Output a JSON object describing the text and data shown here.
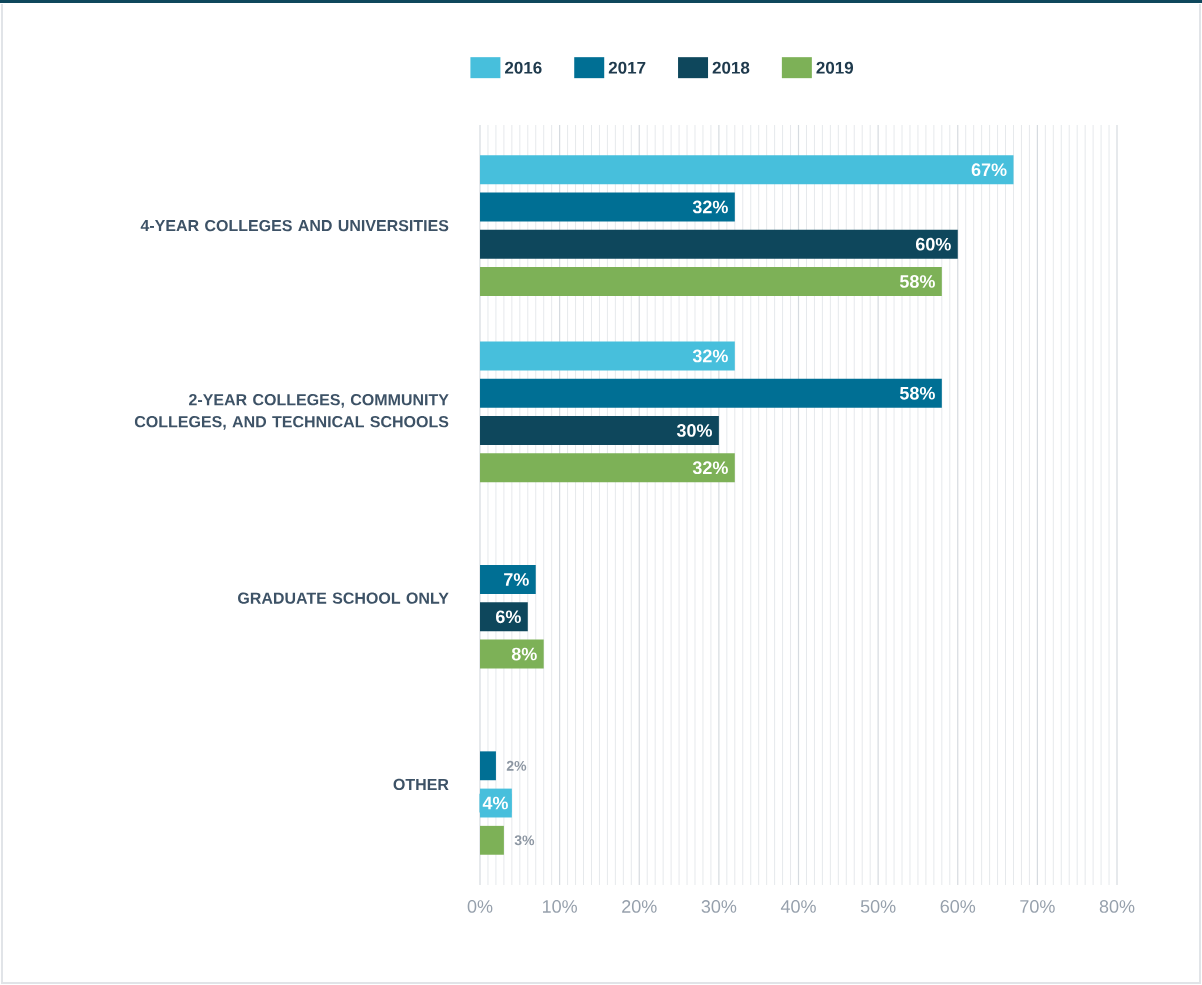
{
  "chart_data": {
    "type": "bar",
    "orientation": "horizontal",
    "categories": [
      "4-YEAR COLLEGES AND UNIVERSITIES",
      "2-YEAR COLLEGES, COMMUNITY COLLEGES, AND TECHNICAL SCHOOLS",
      "GRADUATE SCHOOL ONLY",
      "OTHER"
    ],
    "series": [
      {
        "name": "2016",
        "color": "#47bfdc",
        "values": [
          67,
          32,
          null,
          null
        ],
        "value_labels": [
          "67%",
          "32%",
          null,
          null
        ]
      },
      {
        "name": "2017",
        "color": "#006f94",
        "values": [
          32,
          58,
          7,
          2
        ],
        "value_labels": [
          "32%",
          "58%",
          "7%",
          "2%"
        ]
      },
      {
        "name": "2018",
        "color": "#0e475c",
        "colors": [
          "#0e475c",
          "#0e475c",
          "#0e475c",
          "#47bfdc"
        ],
        "values": [
          60,
          30,
          6,
          4
        ],
        "value_labels": [
          "60%",
          "30%",
          "6%",
          "4%"
        ]
      },
      {
        "name": "2019",
        "color": "#7db157",
        "values": [
          58,
          32,
          8,
          3
        ],
        "value_labels": [
          "58%",
          "32%",
          "8%",
          "3%"
        ]
      }
    ],
    "xlim": [
      0,
      80
    ],
    "xticks": [
      {
        "value": 0,
        "label": "0%"
      },
      {
        "value": 10,
        "label": "10%"
      },
      {
        "value": 20,
        "label": "20%"
      },
      {
        "value": 30,
        "label": "30%"
      },
      {
        "value": 40,
        "label": "40%"
      },
      {
        "value": 50,
        "label": "50%"
      },
      {
        "value": 60,
        "label": "60%"
      },
      {
        "value": 70,
        "label": "70%"
      },
      {
        "value": 80,
        "label": "80%"
      }
    ],
    "grid": "x",
    "legend": "top"
  }
}
